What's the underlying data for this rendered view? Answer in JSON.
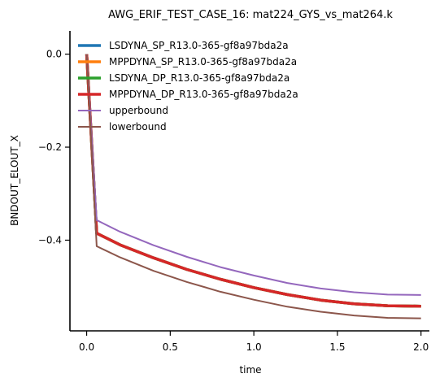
{
  "chart_data": {
    "type": "line",
    "title": "AWG_ERIF_TEST_CASE_16: mat224_GYS_vs_mat264.k",
    "xlabel": "time",
    "ylabel": "BNDOUT_ELOUT_X",
    "xlim": [
      -0.1,
      2.05
    ],
    "ylim": [
      -0.595,
      0.05
    ],
    "x_ticks": [
      0.0,
      0.5,
      1.0,
      1.5,
      2.0
    ],
    "x_tick_labels": [
      "0.0",
      "0.5",
      "1.0",
      "1.5",
      "2.0"
    ],
    "y_ticks": [
      0.0,
      -0.2,
      -0.4
    ],
    "y_tick_labels": [
      "0.0",
      "−0.2",
      "−0.4"
    ],
    "grid": false,
    "legend_placement": "top-left",
    "series": [
      {
        "name": "LSDYNA_SP_R13.0-365-gf8a97bda2a",
        "color": "#1f77b4",
        "style": "thick",
        "x": [
          0.0,
          0.06,
          0.2,
          0.4,
          0.6,
          0.8,
          1.0,
          1.2,
          1.4,
          1.6,
          1.8,
          2.0
        ],
        "y": [
          0.0,
          -0.385,
          -0.41,
          -0.438,
          -0.463,
          -0.484,
          -0.502,
          -0.517,
          -0.529,
          -0.537,
          -0.541,
          -0.542
        ]
      },
      {
        "name": "MPPDYNA_SP_R13.0-365-gf8a97bda2a",
        "color": "#ff7f0e",
        "style": "thick",
        "x": [
          0.0,
          0.06,
          0.2,
          0.4,
          0.6,
          0.8,
          1.0,
          1.2,
          1.4,
          1.6,
          1.8,
          2.0
        ],
        "y": [
          0.0,
          -0.385,
          -0.41,
          -0.438,
          -0.463,
          -0.484,
          -0.502,
          -0.517,
          -0.529,
          -0.537,
          -0.541,
          -0.542
        ]
      },
      {
        "name": "LSDYNA_DP_R13.0-365-gf8a97bda2a",
        "color": "#2ca02c",
        "style": "thick",
        "x": [
          0.0,
          0.06,
          0.2,
          0.4,
          0.6,
          0.8,
          1.0,
          1.2,
          1.4,
          1.6,
          1.8,
          2.0
        ],
        "y": [
          0.0,
          -0.385,
          -0.41,
          -0.438,
          -0.463,
          -0.484,
          -0.502,
          -0.517,
          -0.529,
          -0.537,
          -0.541,
          -0.542
        ]
      },
      {
        "name": "MPPDYNA_DP_R13.0-365-gf8a97bda2a",
        "color": "#d62728",
        "style": "thick",
        "x": [
          0.0,
          0.06,
          0.2,
          0.4,
          0.6,
          0.8,
          1.0,
          1.2,
          1.4,
          1.6,
          1.8,
          2.0
        ],
        "y": [
          0.0,
          -0.385,
          -0.41,
          -0.438,
          -0.463,
          -0.484,
          -0.502,
          -0.517,
          -0.529,
          -0.537,
          -0.541,
          -0.542
        ]
      },
      {
        "name": "upperbound",
        "color": "#9467bd",
        "style": "thin",
        "x": [
          0.0,
          0.06,
          0.2,
          0.4,
          0.6,
          0.8,
          1.0,
          1.2,
          1.4,
          1.6,
          1.8,
          2.0
        ],
        "y": [
          0.0,
          -0.357,
          -0.382,
          -0.411,
          -0.436,
          -0.458,
          -0.476,
          -0.492,
          -0.504,
          -0.512,
          -0.517,
          -0.518
        ]
      },
      {
        "name": "lowerbound",
        "color": "#8c564b",
        "style": "thin",
        "x": [
          0.0,
          0.06,
          0.2,
          0.4,
          0.6,
          0.8,
          1.0,
          1.2,
          1.4,
          1.6,
          1.8,
          2.0
        ],
        "y": [
          0.0,
          -0.413,
          -0.437,
          -0.466,
          -0.49,
          -0.511,
          -0.528,
          -0.543,
          -0.554,
          -0.562,
          -0.567,
          -0.568
        ]
      }
    ]
  }
}
